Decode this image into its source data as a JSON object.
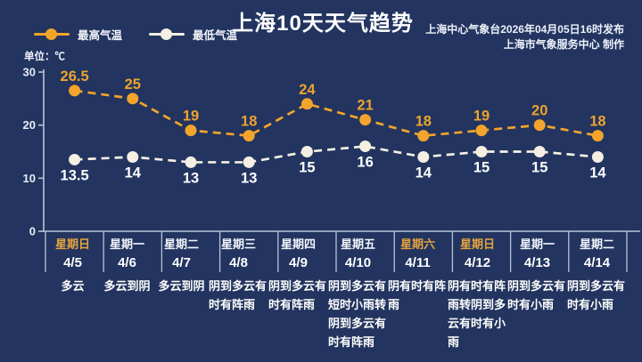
{
  "page": {
    "background": "#22345f"
  },
  "header": {
    "title": "上海10天天气趋势",
    "source_line1": "上海中心气象台2026年04月05日16时发布",
    "source_line2": "上海市气象服务中心  制作"
  },
  "legend": {
    "max_label": "最高气温",
    "min_label": "最低气温"
  },
  "unit_label": "单位：℃",
  "colors": {
    "max_series": "#f2a42c",
    "min_series": "#f4efe2",
    "axis": "#b9c3d9",
    "weekend_text": "#e7a43e",
    "value_label_max": "#eda32f",
    "value_label_min": "#ffffff"
  },
  "chart_data": {
    "type": "line",
    "title": "上海10天天气趋势",
    "unit": "单位：℃",
    "line_style": "dashed",
    "grid": false,
    "legend_position": "top-left",
    "ylim": [
      0,
      30
    ],
    "yticks": [
      0,
      10,
      20,
      30
    ],
    "x_categories": [
      "4/5",
      "4/6",
      "4/7",
      "4/8",
      "4/9",
      "4/10",
      "4/11",
      "4/12",
      "4/13",
      "4/14"
    ],
    "series": [
      {
        "name": "最高气温",
        "color": "#f2a42c",
        "values": [
          26.5,
          25,
          19,
          18,
          24,
          21,
          18,
          19,
          20,
          18
        ]
      },
      {
        "name": "最低气温",
        "color": "#f4efe2",
        "values": [
          13.5,
          14,
          13,
          13,
          15,
          16,
          14,
          15,
          15,
          14
        ]
      }
    ]
  },
  "forecast": {
    "columns": [
      {
        "weekday": "星期日",
        "date": "4/5",
        "weather": "多云",
        "weekend": true
      },
      {
        "weekday": "星期一",
        "date": "4/6",
        "weather": "多云到阴",
        "weekend": false
      },
      {
        "weekday": "星期二",
        "date": "4/7",
        "weather": "多云到阴",
        "weekend": false
      },
      {
        "weekday": "星期三",
        "date": "4/8",
        "weather": "阴到多云有时有阵雨",
        "weekend": false
      },
      {
        "weekday": "星期四",
        "date": "4/9",
        "weather": "阴到多云有时有阵雨",
        "weekend": false
      },
      {
        "weekday": "星期五",
        "date": "4/10",
        "weather": "阴到多云有短时小雨转阴到多云有时有阵雨",
        "weekend": false
      },
      {
        "weekday": "星期六",
        "date": "4/11",
        "weather": "阴有时有阵雨",
        "weekend": true
      },
      {
        "weekday": "星期日",
        "date": "4/12",
        "weather": "阴有时有阵雨转阴到多云有时有小雨",
        "weekend": true
      },
      {
        "weekday": "星期一",
        "date": "4/13",
        "weather": "阴到多云有时有小雨",
        "weekend": false
      },
      {
        "weekday": "星期二",
        "date": "4/14",
        "weather": "阴到多云有时有小雨",
        "weekend": false
      }
    ]
  }
}
